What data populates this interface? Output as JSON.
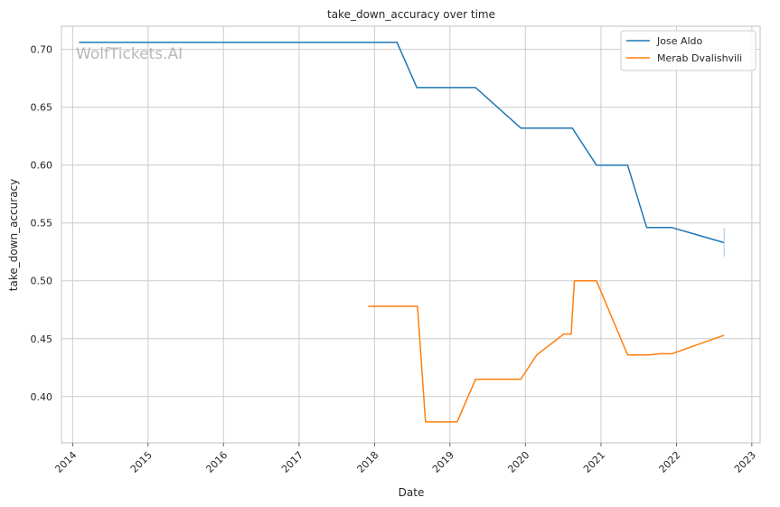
{
  "chart_data": {
    "type": "line",
    "title": "take_down_accuracy over time",
    "xlabel": "Date",
    "ylabel": "take_down_accuracy",
    "watermark": "WolfTickets.AI",
    "xlim": [
      "2013-11-08",
      "2023-02-10"
    ],
    "ylim": [
      0.36,
      0.72
    ],
    "x_ticks": [
      "2014",
      "2015",
      "2016",
      "2017",
      "2018",
      "2019",
      "2020",
      "2021",
      "2022",
      "2023"
    ],
    "y_ticks": [
      "0.40",
      "0.45",
      "0.50",
      "0.55",
      "0.60",
      "0.65",
      "0.70"
    ],
    "grid": true,
    "legend": "top-right",
    "series": [
      {
        "name": "Jose Aldo",
        "color": "#1f77b4",
        "points": [
          [
            "2014-02-01",
            0.706
          ],
          [
            "2018-04-20",
            0.706
          ],
          [
            "2018-07-25",
            0.667
          ],
          [
            "2019-05-05",
            0.667
          ],
          [
            "2019-12-10",
            0.632
          ],
          [
            "2020-08-15",
            0.632
          ],
          [
            "2020-12-10",
            0.6
          ],
          [
            "2021-05-10",
            0.6
          ],
          [
            "2021-08-10",
            0.546
          ],
          [
            "2021-12-10",
            0.546
          ],
          [
            "2022-08-20",
            0.533
          ]
        ]
      },
      {
        "name": "Merab Dvalishvili",
        "color": "#ff7f0e",
        "points": [
          [
            "2017-12-01",
            0.478
          ],
          [
            "2018-07-28",
            0.478
          ],
          [
            "2018-09-05",
            0.378
          ],
          [
            "2019-02-05",
            0.378
          ],
          [
            "2019-05-05",
            0.415
          ],
          [
            "2019-12-10",
            0.415
          ],
          [
            "2020-02-25",
            0.436
          ],
          [
            "2020-07-05",
            0.454
          ],
          [
            "2020-08-10",
            0.454
          ],
          [
            "2020-08-25",
            0.5
          ],
          [
            "2020-12-10",
            0.5
          ],
          [
            "2021-05-10",
            0.436
          ],
          [
            "2021-08-20",
            0.436
          ],
          [
            "2021-10-15",
            0.437
          ],
          [
            "2021-12-10",
            0.437
          ],
          [
            "2022-08-20",
            0.453
          ]
        ]
      }
    ],
    "errorbar": {
      "x": "2022-08-20",
      "y_low": 0.521,
      "y_high": 0.546
    }
  }
}
